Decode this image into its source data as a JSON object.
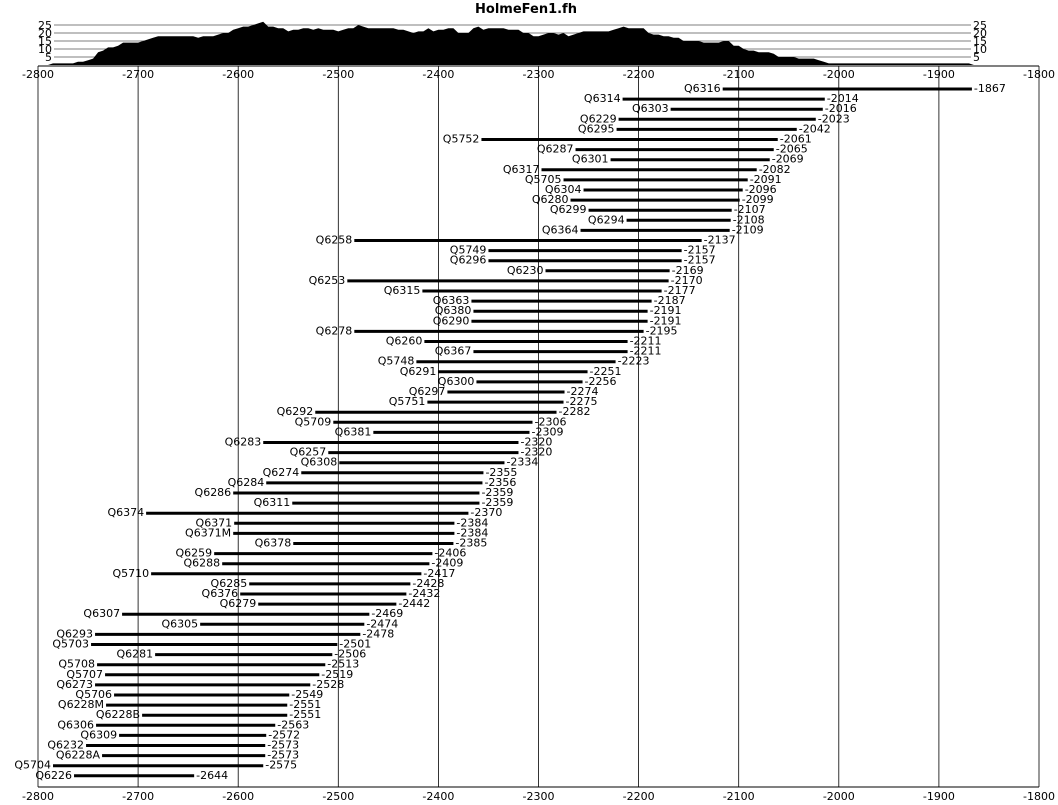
{
  "chart_data": {
    "type": "bar",
    "orientation": "horizontal-range",
    "title": "HolmeFen1.fh",
    "xlim": [
      -2800,
      -1800
    ],
    "x_ticks": [
      -2800,
      -2700,
      -2600,
      -2500,
      -2400,
      -2300,
      -2200,
      -2100,
      -2000,
      -1900,
      -1800
    ],
    "histogram_ticks": [
      25,
      20,
      15,
      10,
      5
    ],
    "histogram_ylim": [
      0,
      25
    ],
    "grid": true,
    "samples": [
      {
        "name": "Q6316",
        "start": -2116,
        "end": -1867
      },
      {
        "name": "Q6314",
        "start": -2216,
        "end": -2014
      },
      {
        "name": "Q6303",
        "start": -2168,
        "end": -2016
      },
      {
        "name": "Q6229",
        "start": -2220,
        "end": -2023
      },
      {
        "name": "Q6295",
        "start": -2222,
        "end": -2042
      },
      {
        "name": "Q5752",
        "start": -2357,
        "end": -2061
      },
      {
        "name": "Q6287",
        "start": -2263,
        "end": -2065
      },
      {
        "name": "Q6301",
        "start": -2228,
        "end": -2069
      },
      {
        "name": "Q6317",
        "start": -2297,
        "end": -2082
      },
      {
        "name": "Q5705",
        "start": -2275,
        "end": -2091
      },
      {
        "name": "Q6304",
        "start": -2255,
        "end": -2096
      },
      {
        "name": "Q6280",
        "start": -2268,
        "end": -2099
      },
      {
        "name": "Q6299",
        "start": -2250,
        "end": -2107
      },
      {
        "name": "Q6294",
        "start": -2212,
        "end": -2108
      },
      {
        "name": "Q6364",
        "start": -2258,
        "end": -2109
      },
      {
        "name": "Q6258",
        "start": -2484,
        "end": -2137
      },
      {
        "name": "Q5749",
        "start": -2350,
        "end": -2157
      },
      {
        "name": "Q6296",
        "start": -2350,
        "end": -2157
      },
      {
        "name": "Q6230",
        "start": -2293,
        "end": -2169
      },
      {
        "name": "Q6253",
        "start": -2491,
        "end": -2170
      },
      {
        "name": "Q6315",
        "start": -2416,
        "end": -2177
      },
      {
        "name": "Q6363",
        "start": -2367,
        "end": -2187
      },
      {
        "name": "Q6380",
        "start": -2365,
        "end": -2191
      },
      {
        "name": "Q6290",
        "start": -2367,
        "end": -2191
      },
      {
        "name": "Q6278",
        "start": -2484,
        "end": -2195
      },
      {
        "name": "Q6260",
        "start": -2414,
        "end": -2211
      },
      {
        "name": "Q6367",
        "start": -2365,
        "end": -2211
      },
      {
        "name": "Q5748",
        "start": -2422,
        "end": -2223
      },
      {
        "name": "Q6291",
        "start": -2400,
        "end": -2251
      },
      {
        "name": "Q6300",
        "start": -2362,
        "end": -2256
      },
      {
        "name": "Q6297",
        "start": -2391,
        "end": -2274
      },
      {
        "name": "Q5751",
        "start": -2411,
        "end": -2275
      },
      {
        "name": "Q6292",
        "start": -2523,
        "end": -2282
      },
      {
        "name": "Q5709",
        "start": -2505,
        "end": -2306
      },
      {
        "name": "Q6381",
        "start": -2465,
        "end": -2309
      },
      {
        "name": "Q6283",
        "start": -2575,
        "end": -2320
      },
      {
        "name": "Q6257",
        "start": -2510,
        "end": -2320
      },
      {
        "name": "Q6308",
        "start": -2499,
        "end": -2334
      },
      {
        "name": "Q6274",
        "start": -2537,
        "end": -2355
      },
      {
        "name": "Q6284",
        "start": -2572,
        "end": -2356
      },
      {
        "name": "Q6286",
        "start": -2605,
        "end": -2359
      },
      {
        "name": "Q6311",
        "start": -2546,
        "end": -2359
      },
      {
        "name": "Q6374",
        "start": -2692,
        "end": -2370
      },
      {
        "name": "Q6371",
        "start": -2604,
        "end": -2384
      },
      {
        "name": "Q6371M",
        "start": -2605,
        "end": -2384
      },
      {
        "name": "Q6378",
        "start": -2545,
        "end": -2385
      },
      {
        "name": "Q6259",
        "start": -2624,
        "end": -2406
      },
      {
        "name": "Q6288",
        "start": -2616,
        "end": -2409
      },
      {
        "name": "Q5710",
        "start": -2687,
        "end": -2417
      },
      {
        "name": "Q6285",
        "start": -2589,
        "end": -2428
      },
      {
        "name": "Q6376",
        "start": -2598,
        "end": -2432
      },
      {
        "name": "Q6279",
        "start": -2580,
        "end": -2442
      },
      {
        "name": "Q6307",
        "start": -2716,
        "end": -2469
      },
      {
        "name": "Q6305",
        "start": -2638,
        "end": -2474
      },
      {
        "name": "Q6293",
        "start": -2743,
        "end": -2478
      },
      {
        "name": "Q5703",
        "start": -2747,
        "end": -2501
      },
      {
        "name": "Q6281",
        "start": -2683,
        "end": -2506
      },
      {
        "name": "Q5708",
        "start": -2741,
        "end": -2513
      },
      {
        "name": "Q5707",
        "start": -2733,
        "end": -2519
      },
      {
        "name": "Q6273",
        "start": -2743,
        "end": -2528
      },
      {
        "name": "Q5706",
        "start": -2724,
        "end": -2549
      },
      {
        "name": "Q6228M",
        "start": -2732,
        "end": -2551
      },
      {
        "name": "Q6228B",
        "start": -2696,
        "end": -2551
      },
      {
        "name": "Q6306",
        "start": -2742,
        "end": -2563
      },
      {
        "name": "Q6309",
        "start": -2719,
        "end": -2572
      },
      {
        "name": "Q6232",
        "start": -2752,
        "end": -2573
      },
      {
        "name": "Q6228A",
        "start": -2736,
        "end": -2573
      },
      {
        "name": "Q5704",
        "start": -2785,
        "end": -2575
      },
      {
        "name": "Q6226",
        "start": -2764,
        "end": -2644
      }
    ]
  }
}
